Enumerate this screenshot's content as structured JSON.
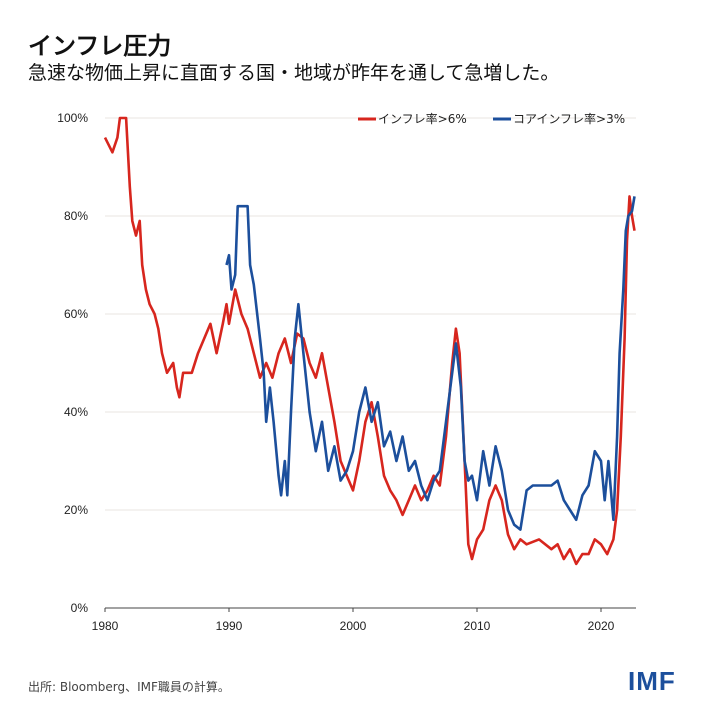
{
  "title": "インフレ圧力",
  "subtitle": "急速な物価上昇に直面する国・地域が昨年を通して急増した。",
  "source": "出所: Bloomberg、IMF職員の計算。",
  "logo": "IMF",
  "chart_data": {
    "type": "line",
    "xlim": [
      1980,
      2022.8
    ],
    "ylim": [
      0,
      100
    ],
    "xticks": [
      "1980",
      "1990",
      "2000",
      "2010",
      "2020"
    ],
    "yticks": [
      "0%",
      "20%",
      "40%",
      "60%",
      "80%",
      "100%"
    ],
    "grid": "horizontal",
    "legend": "top-right",
    "series": [
      {
        "name": "インフレ率>6%",
        "color": "#d7261e",
        "points": [
          [
            1980,
            96
          ],
          [
            1980.6,
            93
          ],
          [
            1981,
            96
          ],
          [
            1981.2,
            100
          ],
          [
            1981.7,
            100
          ],
          [
            1982,
            86
          ],
          [
            1982.2,
            79
          ],
          [
            1982.5,
            76
          ],
          [
            1982.8,
            79
          ],
          [
            1983,
            70
          ],
          [
            1983.3,
            65
          ],
          [
            1983.6,
            62
          ],
          [
            1984,
            60
          ],
          [
            1984.3,
            57
          ],
          [
            1984.6,
            52
          ],
          [
            1985,
            48
          ],
          [
            1985.5,
            50
          ],
          [
            1985.8,
            45
          ],
          [
            1986,
            43
          ],
          [
            1986.3,
            48
          ],
          [
            1987,
            48
          ],
          [
            1987.5,
            52
          ],
          [
            1988,
            55
          ],
          [
            1988.5,
            58
          ],
          [
            1989,
            52
          ],
          [
            1989.5,
            58
          ],
          [
            1989.8,
            62
          ],
          [
            1990,
            58
          ],
          [
            1990.5,
            65
          ],
          [
            1991,
            60
          ],
          [
            1991.5,
            57
          ],
          [
            1992,
            52
          ],
          [
            1992.5,
            47
          ],
          [
            1993,
            50
          ],
          [
            1993.5,
            47
          ],
          [
            1994,
            52
          ],
          [
            1994.5,
            55
          ],
          [
            1995,
            50
          ],
          [
            1995.5,
            56
          ],
          [
            1996,
            55
          ],
          [
            1996.5,
            50
          ],
          [
            1997,
            47
          ],
          [
            1997.5,
            52
          ],
          [
            1998,
            45
          ],
          [
            1998.5,
            38
          ],
          [
            1999,
            30
          ],
          [
            1999.5,
            27
          ],
          [
            2000,
            24
          ],
          [
            2000.5,
            30
          ],
          [
            2001,
            38
          ],
          [
            2001.5,
            42
          ],
          [
            2002,
            35
          ],
          [
            2002.5,
            27
          ],
          [
            2003,
            24
          ],
          [
            2003.5,
            22
          ],
          [
            2004,
            19
          ],
          [
            2004.5,
            22
          ],
          [
            2005,
            25
          ],
          [
            2005.5,
            22
          ],
          [
            2006,
            24
          ],
          [
            2006.5,
            27
          ],
          [
            2007,
            25
          ],
          [
            2007.5,
            35
          ],
          [
            2008,
            50
          ],
          [
            2008.3,
            57
          ],
          [
            2008.6,
            52
          ],
          [
            2009,
            30
          ],
          [
            2009.3,
            13
          ],
          [
            2009.6,
            10
          ],
          [
            2010,
            14
          ],
          [
            2010.5,
            16
          ],
          [
            2011,
            22
          ],
          [
            2011.5,
            25
          ],
          [
            2012,
            22
          ],
          [
            2012.5,
            15
          ],
          [
            2013,
            12
          ],
          [
            2013.5,
            14
          ],
          [
            2014,
            13
          ],
          [
            2015,
            14
          ],
          [
            2016,
            12
          ],
          [
            2016.5,
            13
          ],
          [
            2017,
            10
          ],
          [
            2017.5,
            12
          ],
          [
            2018,
            9
          ],
          [
            2018.5,
            11
          ],
          [
            2019,
            11
          ],
          [
            2019.5,
            14
          ],
          [
            2020,
            13
          ],
          [
            2020.5,
            11
          ],
          [
            2021,
            14
          ],
          [
            2021.3,
            20
          ],
          [
            2021.6,
            35
          ],
          [
            2021.9,
            55
          ],
          [
            2022.1,
            75
          ],
          [
            2022.3,
            84
          ],
          [
            2022.5,
            80
          ],
          [
            2022.7,
            77
          ]
        ]
      },
      {
        "name": "コアインフレ率>3%",
        "color": "#1c4f9c",
        "points": [
          [
            1989.8,
            70
          ],
          [
            1990,
            72
          ],
          [
            1990.2,
            65
          ],
          [
            1990.5,
            68
          ],
          [
            1990.7,
            82
          ],
          [
            1991.5,
            82
          ],
          [
            1991.7,
            70
          ],
          [
            1992,
            66
          ],
          [
            1992.5,
            55
          ],
          [
            1992.8,
            48
          ],
          [
            1993,
            38
          ],
          [
            1993.3,
            45
          ],
          [
            1993.6,
            38
          ],
          [
            1994,
            27
          ],
          [
            1994.2,
            23
          ],
          [
            1994.5,
            30
          ],
          [
            1994.7,
            23
          ],
          [
            1995,
            40
          ],
          [
            1995.3,
            55
          ],
          [
            1995.6,
            62
          ],
          [
            1996,
            52
          ],
          [
            1996.5,
            40
          ],
          [
            1997,
            32
          ],
          [
            1997.5,
            38
          ],
          [
            1998,
            28
          ],
          [
            1998.5,
            33
          ],
          [
            1999,
            26
          ],
          [
            1999.5,
            28
          ],
          [
            2000,
            32
          ],
          [
            2000.5,
            40
          ],
          [
            2001,
            45
          ],
          [
            2001.5,
            38
          ],
          [
            2002,
            42
          ],
          [
            2002.5,
            33
          ],
          [
            2003,
            36
          ],
          [
            2003.5,
            30
          ],
          [
            2004,
            35
          ],
          [
            2004.5,
            28
          ],
          [
            2005,
            30
          ],
          [
            2005.5,
            25
          ],
          [
            2006,
            22
          ],
          [
            2006.5,
            26
          ],
          [
            2007,
            28
          ],
          [
            2007.5,
            38
          ],
          [
            2008,
            48
          ],
          [
            2008.3,
            54
          ],
          [
            2008.7,
            45
          ],
          [
            2009,
            30
          ],
          [
            2009.3,
            26
          ],
          [
            2009.6,
            27
          ],
          [
            2010,
            22
          ],
          [
            2010.5,
            32
          ],
          [
            2011,
            25
          ],
          [
            2011.5,
            33
          ],
          [
            2012,
            28
          ],
          [
            2012.5,
            20
          ],
          [
            2013,
            17
          ],
          [
            2013.5,
            16
          ],
          [
            2014,
            24
          ],
          [
            2014.5,
            25
          ],
          [
            2015,
            25
          ],
          [
            2016,
            25
          ],
          [
            2016.5,
            26
          ],
          [
            2017,
            22
          ],
          [
            2017.5,
            20
          ],
          [
            2018,
            18
          ],
          [
            2018.5,
            23
          ],
          [
            2019,
            25
          ],
          [
            2019.5,
            32
          ],
          [
            2020,
            30
          ],
          [
            2020.3,
            22
          ],
          [
            2020.6,
            30
          ],
          [
            2021,
            18
          ],
          [
            2021.3,
            35
          ],
          [
            2021.5,
            52
          ],
          [
            2021.8,
            65
          ],
          [
            2022,
            77
          ],
          [
            2022.2,
            80
          ],
          [
            2022.5,
            81
          ],
          [
            2022.7,
            84
          ]
        ]
      }
    ]
  }
}
